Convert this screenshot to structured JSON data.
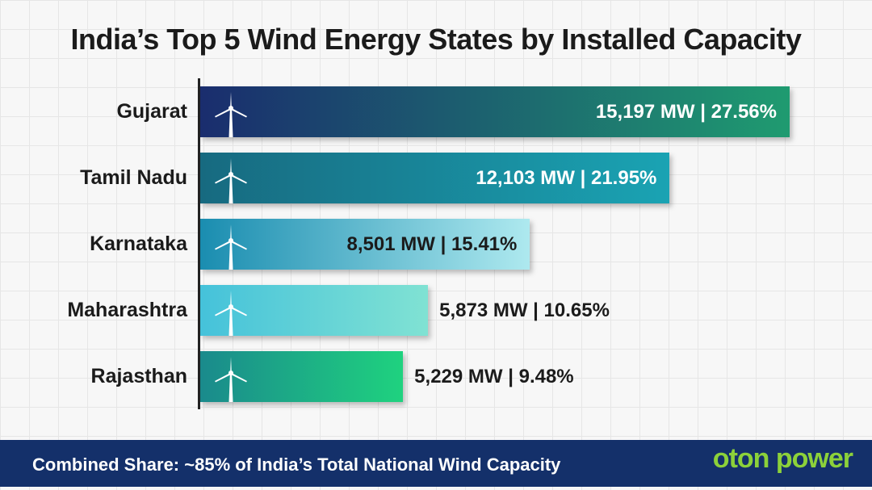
{
  "chart_data": {
    "type": "bar",
    "orientation": "horizontal",
    "title": "India’s Top 5 Wind Energy States by Installed Capacity",
    "categories": [
      "Gujarat",
      "Tamil Nadu",
      "Karnataka",
      "Maharashtra",
      "Rajasthan"
    ],
    "values": [
      15197,
      12103,
      8501,
      5873,
      5229
    ],
    "shares": [
      27.56,
      21.95,
      15.41,
      10.65,
      9.48
    ],
    "data_labels": [
      "15,197 MW | 27.56%",
      "12,103 MW | 21.95%",
      "8,501 MW | 15.41%",
      "5,873 MW | 10.65%",
      "5,229 MW | 9.48%"
    ],
    "unit": "MW",
    "grid": true,
    "bar_icon": "wind-turbine-icon",
    "colors": [
      [
        "#1a2d6e",
        "#1f9b70"
      ],
      [
        "#176a80",
        "#1aa3b3"
      ],
      [
        "#1a8db0",
        "#aee9ef"
      ],
      [
        "#45c2da",
        "#80e2d3"
      ],
      [
        "#1a8a8c",
        "#1fd27f"
      ]
    ],
    "label_colors": [
      "#ffffff",
      "#ffffff",
      "#1b1b1b",
      "#1b1b1b",
      "#1b1b1b"
    ]
  },
  "footer": {
    "text": "Combined Share: ~85% of India’s Total National Wind Capacity",
    "logo": "oton power"
  }
}
